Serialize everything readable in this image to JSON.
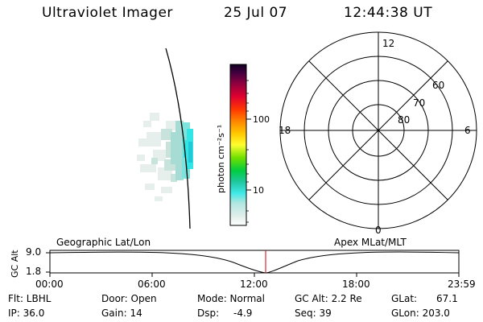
{
  "header": {
    "title": "Ultraviolet Imager",
    "date": "25 Jul 07",
    "time": "12:44:38 UT"
  },
  "colorbar": {
    "label": "photon cm⁻²s⁻¹",
    "ticks": [
      "100",
      "10"
    ]
  },
  "polar_plot": {
    "mlt_labels": {
      "top": "12",
      "left": "18",
      "right": "6",
      "bottom": "0"
    },
    "lat_labels": [
      "60",
      "70",
      "80"
    ]
  },
  "timeline": {
    "ylabel": "GC Alt",
    "y_ticks": [
      "9.0",
      "1.8"
    ],
    "left_caption": "Geographic Lat/Lon",
    "right_caption": "Apex MLat/MLT",
    "x_ticks": [
      "00:00",
      "06:00",
      "12:00",
      "18:00",
      "23:59"
    ],
    "current_marker_color": "#cc0000"
  },
  "info": {
    "flt": "Flt: LBHL",
    "ip": "IP: 36.0",
    "door": "Door: Open",
    "gain": "Gain: 14",
    "mode": "Mode: Normal",
    "dsp_label": "Dsp:",
    "dsp_value": "-4.9",
    "gcalt": "GC Alt: 2.2 Re",
    "seq": "Seq: 39",
    "glat_label": "GLat:",
    "glat_value": "67.1",
    "glon": "GLon: 203.0"
  }
}
